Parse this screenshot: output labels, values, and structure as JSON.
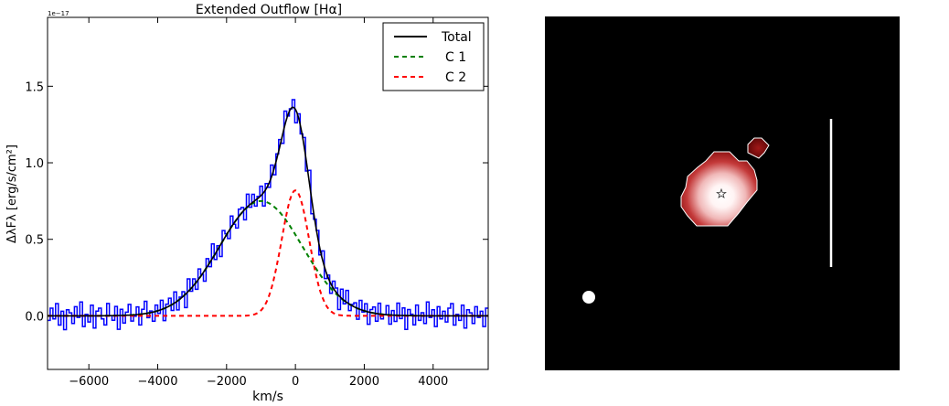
{
  "chart_data": [
    {
      "type": "line",
      "title": "Extended Outflow [Hα]",
      "xlabel": "km/s",
      "ylabel": "ΔλFλ [erg/s/cm²]",
      "offset_label": "1e−17",
      "xlim": [
        -7200,
        5600
      ],
      "ylim": [
        -0.35,
        1.95
      ],
      "xticks": [
        -6000,
        -4000,
        -2000,
        0,
        2000,
        4000
      ],
      "xtick_labels": [
        "−6000",
        "−4000",
        "−2000",
        "0",
        "2000",
        "4000"
      ],
      "yticks": [
        0.0,
        0.5,
        1.0,
        1.5
      ],
      "ytick_labels": [
        "0.0",
        "0.5",
        "1.0",
        "1.5"
      ],
      "grid": false,
      "legend_position": "top-right",
      "series": [
        {
          "name": "Total",
          "style": "solid",
          "color": "#000000",
          "components": [
            {
              "amp": 0.75,
              "center": -1000,
              "sigma": 1200
            },
            {
              "amp": 0.82,
              "center": 0,
              "sigma": 400
            }
          ]
        },
        {
          "name": "C 1",
          "style": "dashed",
          "color": "#008000",
          "components": [
            {
              "amp": 0.75,
              "center": -1000,
              "sigma": 1200
            }
          ]
        },
        {
          "name": "C 2",
          "style": "dashed",
          "color": "#ff0000",
          "components": [
            {
              "amp": 0.82,
              "center": 0,
              "sigma": 400
            }
          ]
        }
      ],
      "data_series": {
        "color": "#0000ff",
        "style": "steps",
        "x_start": -7200,
        "x_step": 25,
        "residuals": [
          -0.03,
          0.05,
          -0.02,
          0.08,
          -0.06,
          0.03,
          -0.09,
          0.04,
          0.02,
          -0.05,
          0.06,
          -0.01,
          0.09,
          -0.07,
          0.01,
          -0.04,
          0.07,
          -0.08,
          0.03,
          0.05,
          -0.02,
          -0.06,
          0.08,
          0.0,
          -0.03,
          0.06,
          -0.09,
          0.04,
          -0.05,
          0.02,
          0.07,
          -0.04,
          -0.01,
          0.05,
          -0.07,
          0.03,
          0.08,
          -0.03,
          0.01,
          -0.06,
          0.04,
          -0.02,
          0.06,
          -0.08,
          0.02,
          0.05,
          -0.04,
          0.07,
          -0.06,
          0.01,
          0.03,
          -0.09,
          0.08,
          -0.02,
          0.04,
          -0.05,
          0.06,
          0.0,
          -0.07,
          0.05,
          -0.03,
          0.09,
          -0.04,
          0.02,
          -0.08,
          0.06,
          0.01,
          -0.05,
          0.07,
          -0.01,
          -0.06,
          0.04,
          0.03,
          -0.07,
          0.08,
          -0.02,
          0.05,
          -0.04,
          0.01,
          0.06,
          -0.09,
          0.03,
          -0.03,
          0.07,
          -0.05,
          0.02,
          0.04,
          -0.06,
          0.08,
          -0.01,
          0.0,
          0.05,
          -0.08,
          0.03,
          -0.02,
          0.06,
          -0.04,
          0.09,
          -0.07,
          0.01,
          0.04,
          -0.03,
          0.07,
          -0.05,
          0.02,
          -0.06,
          0.05,
          0.03,
          -0.09,
          0.06,
          -0.02,
          0.08,
          -0.04,
          0.01,
          0.03,
          -0.07,
          0.06,
          -0.01,
          0.05,
          -0.08,
          0.02,
          0.04,
          -0.05,
          0.07,
          -0.03,
          0.0,
          0.06,
          -0.06,
          0.03,
          -0.04,
          0.08,
          -0.02,
          0.05,
          -0.09,
          0.04,
          0.01,
          -0.06,
          0.07,
          -0.03,
          0.02,
          -0.05,
          0.09,
          -0.01,
          0.04,
          -0.07,
          0.06,
          -0.02,
          0.03,
          -0.04,
          0.05,
          0.08,
          -0.06,
          0.01,
          -0.03,
          0.07,
          -0.08,
          0.04,
          0.02,
          -0.05,
          0.06,
          -0.01,
          0.03,
          -0.07,
          0.05
        ]
      }
    },
    {
      "type": "heatmap",
      "colors": {
        "background": "#000000",
        "contour": "#ffffff",
        "colormap": [
          "#3a0000",
          "#8b0f0f",
          "#c43a3a",
          "#f0b8b8",
          "#ffffff"
        ]
      },
      "markers": [
        "star",
        "circle",
        "scale-bar"
      ]
    }
  ]
}
